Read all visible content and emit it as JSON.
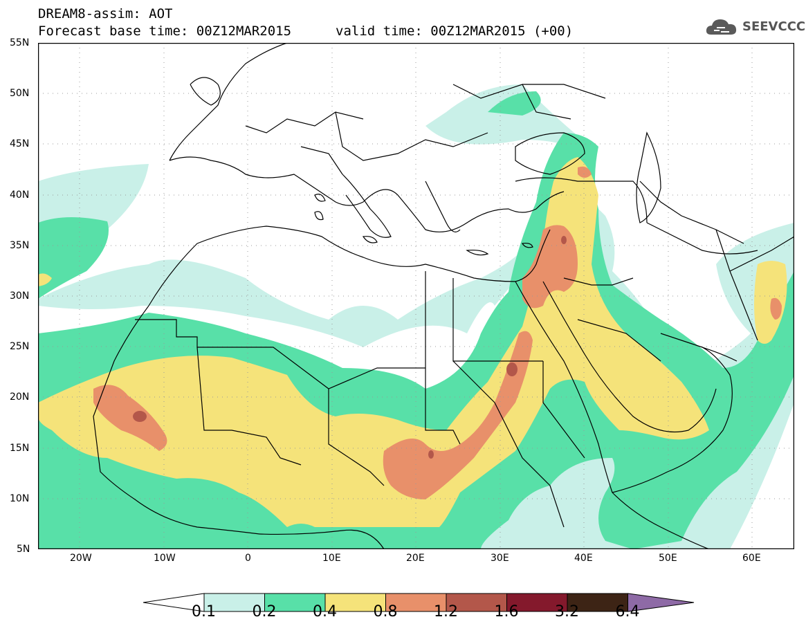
{
  "title": {
    "line1": "DREAM8-assim: AOT",
    "line2_base": "Forecast base time: 00Z12MAR2015",
    "line2_valid": "valid time: 00Z12MAR2015 (+00)"
  },
  "logo": {
    "text": "SEEVCCC",
    "icon": "cloud-icon"
  },
  "map": {
    "lat_labels": [
      "55N",
      "50N",
      "45N",
      "40N",
      "35N",
      "30N",
      "25N",
      "20N",
      "15N",
      "10N",
      "5N"
    ],
    "lon_labels": [
      "20W",
      "10W",
      "0",
      "10E",
      "20E",
      "30E",
      "40E",
      "50E",
      "60E"
    ],
    "lat_range": [
      5,
      55
    ],
    "lon_range": [
      -25,
      65
    ],
    "grid": true
  },
  "colorbar": {
    "values": [
      "0.1",
      "0.2",
      "0.4",
      "0.8",
      "1.2",
      "1.6",
      "3.2",
      "6.4"
    ],
    "colors": [
      "#ffffff",
      "#c9f0e8",
      "#58e0a8",
      "#f5e37a",
      "#e8906a",
      "#b3574a",
      "#84192c",
      "#3d2415",
      "#8e6aa6"
    ]
  }
}
